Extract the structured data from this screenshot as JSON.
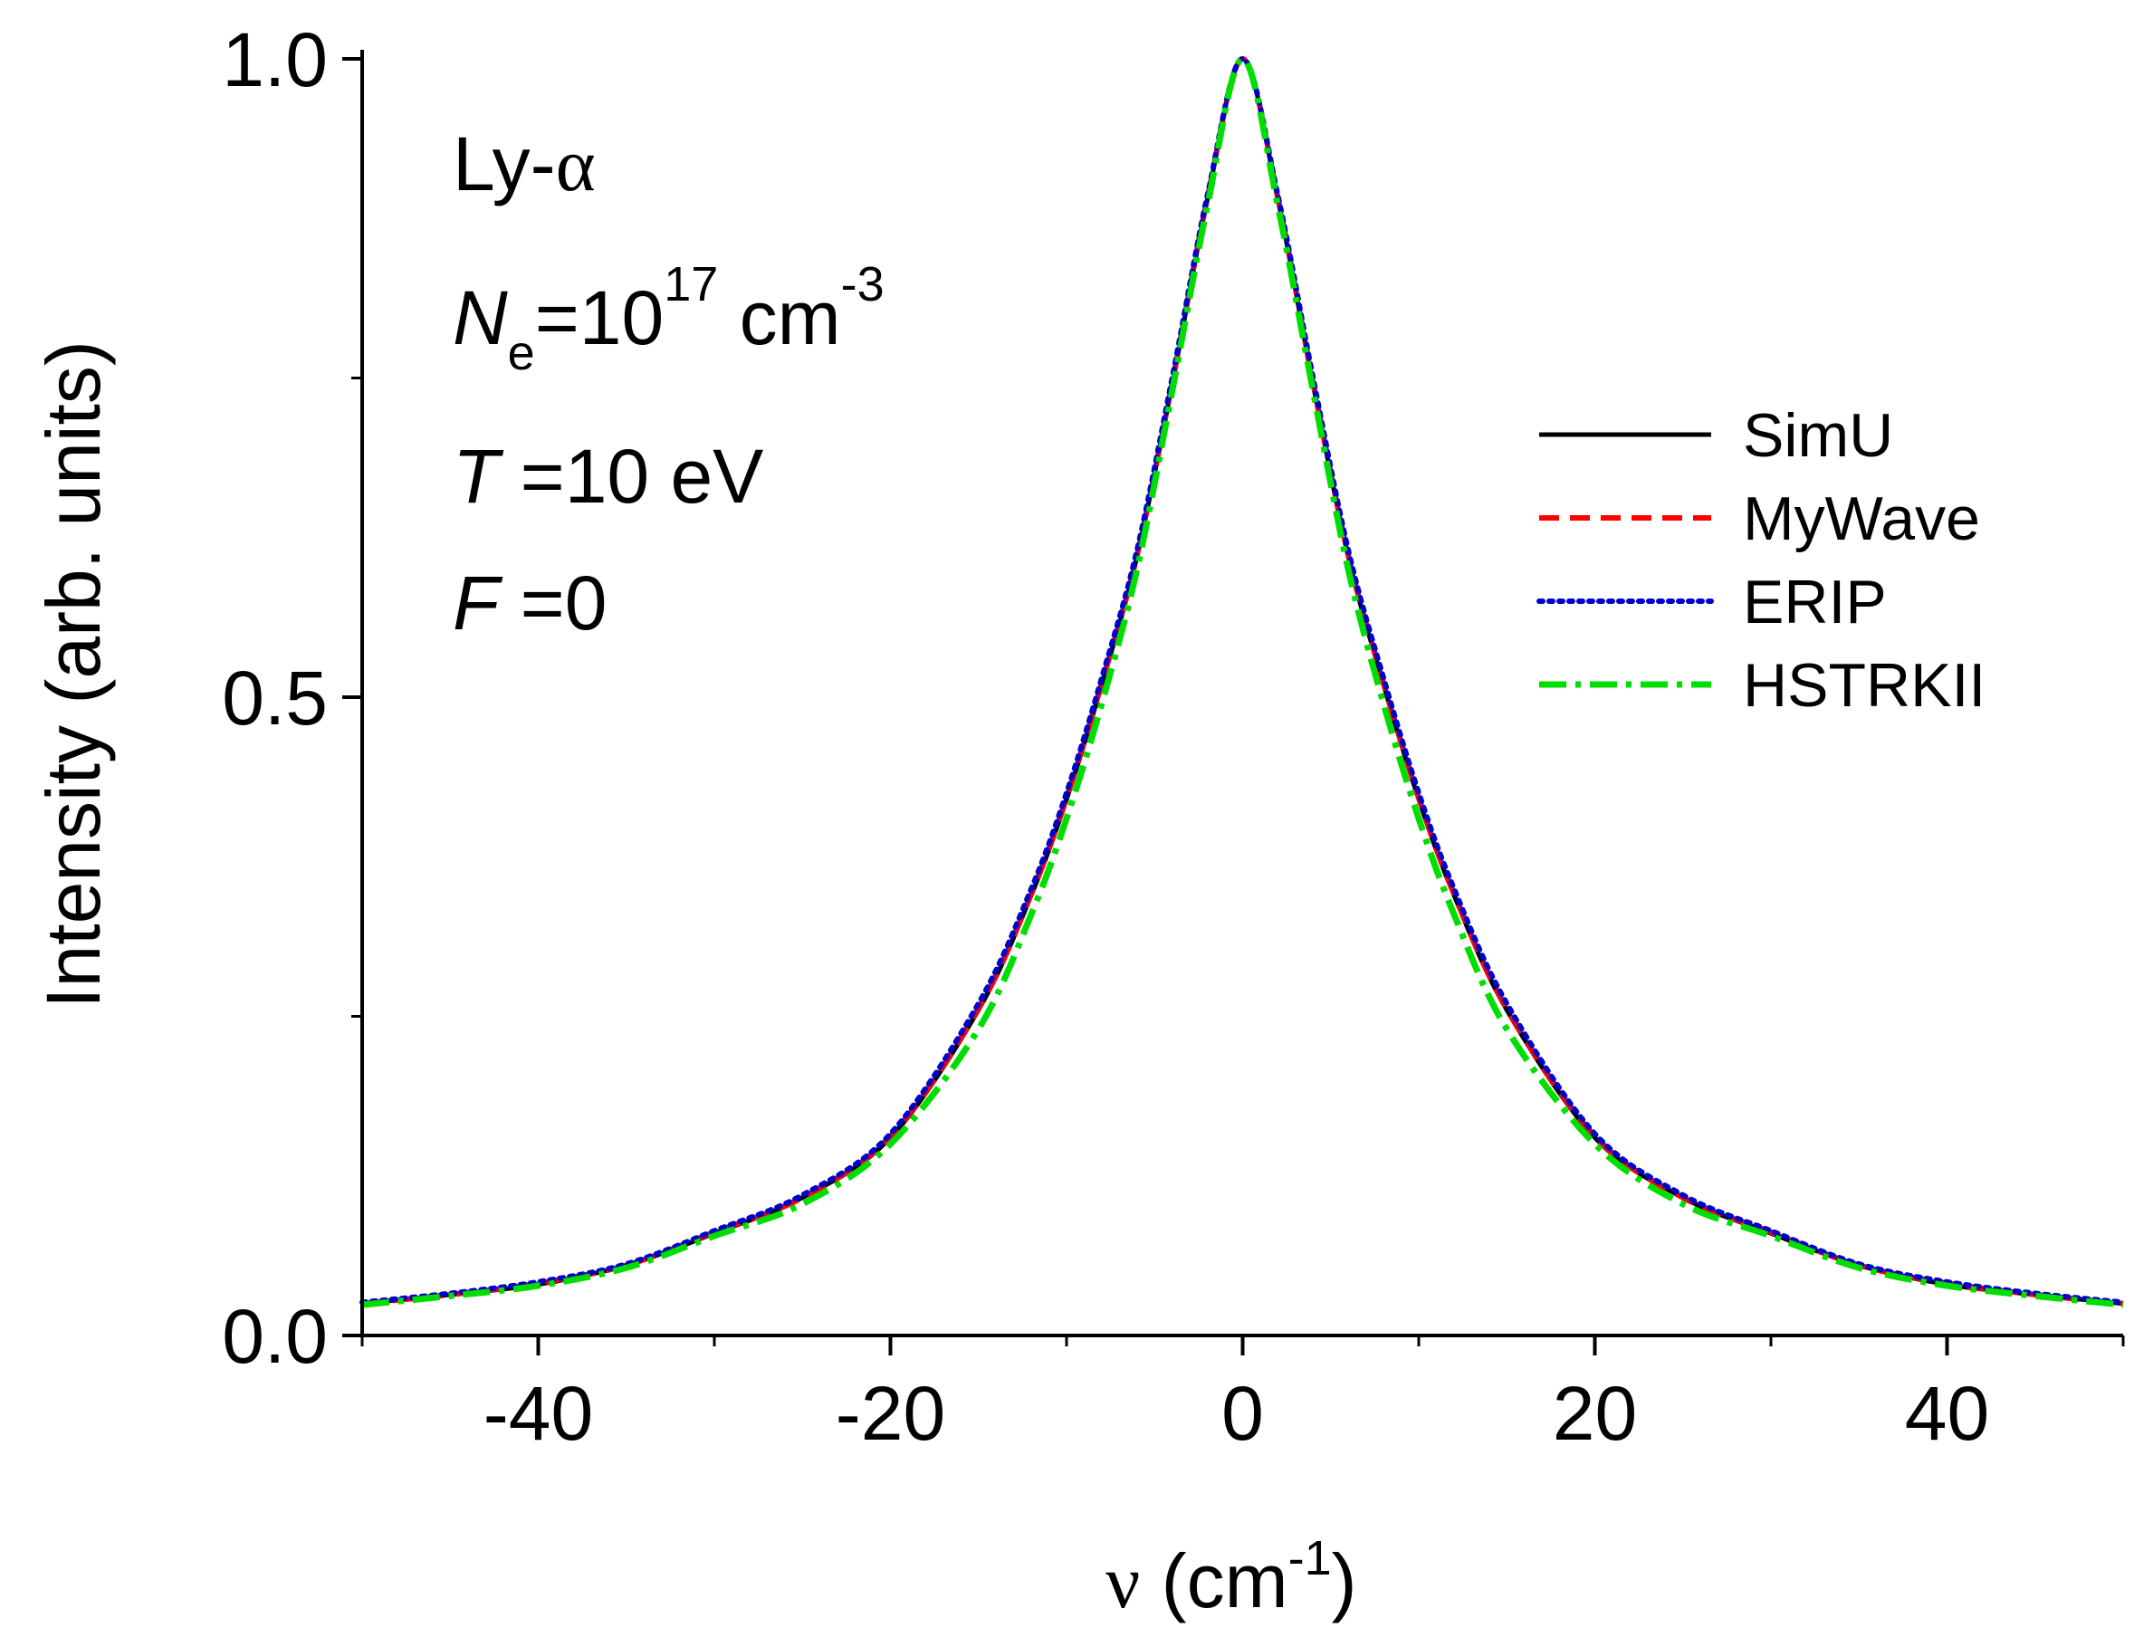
{
  "chart_data": {
    "type": "line",
    "xlabel": "ν (cm-1)",
    "xlabel_parts": {
      "symbol": "ν",
      "open": " (cm",
      "sup": "-1",
      "close": ")"
    },
    "ylabel": "Intensity (arb. units)",
    "xlim": [
      -50,
      50
    ],
    "ylim": [
      0,
      1.0
    ],
    "xticks": [
      -40,
      -20,
      0,
      20,
      40
    ],
    "xtick_labels": [
      "-40",
      "-20",
      "0",
      "20",
      "40"
    ],
    "yticks": [
      0.0,
      0.5,
      1.0
    ],
    "ytick_labels": [
      "0.0",
      "0.5",
      "1.0"
    ],
    "grid": false,
    "legend_position": "right",
    "annotations": {
      "line": {
        "prefix": "Ly-",
        "greek": "α"
      },
      "density": {
        "symbol": "N",
        "sub": "e",
        "eq": "=10",
        "sup": "17",
        "unit": " cm",
        "unit_sup": "-3"
      },
      "temperature": {
        "symbol": "T",
        "eq": " =10 eV"
      },
      "field": {
        "symbol": "F",
        "eq": " =0"
      }
    },
    "x": [
      -50,
      -45,
      -40,
      -35,
      -30,
      -25,
      -20,
      -15,
      -12,
      -10,
      -8,
      -6,
      -4,
      -2,
      0,
      2,
      4,
      6,
      8,
      10,
      12,
      15,
      20,
      25,
      30,
      35,
      40,
      45,
      50
    ],
    "series": [
      {
        "name": "SimU",
        "color": "#000000",
        "style": "solid",
        "values": [
          0.025,
          0.032,
          0.04,
          0.055,
          0.08,
          0.108,
          0.155,
          0.255,
          0.345,
          0.42,
          0.51,
          0.61,
          0.745,
          0.89,
          1.0,
          0.89,
          0.745,
          0.61,
          0.51,
          0.42,
          0.345,
          0.255,
          0.155,
          0.108,
          0.08,
          0.055,
          0.04,
          0.032,
          0.025
        ]
      },
      {
        "name": "MyWave",
        "color": "#ff0000",
        "style": "dashed",
        "values": [
          0.025,
          0.032,
          0.041,
          0.055,
          0.081,
          0.108,
          0.156,
          0.256,
          0.346,
          0.421,
          0.511,
          0.611,
          0.746,
          0.891,
          1.0,
          0.891,
          0.746,
          0.611,
          0.511,
          0.421,
          0.346,
          0.256,
          0.156,
          0.108,
          0.081,
          0.055,
          0.041,
          0.032,
          0.025
        ]
      },
      {
        "name": "ERIP",
        "color": "#0000cc",
        "style": "dotted",
        "values": [
          0.026,
          0.033,
          0.042,
          0.056,
          0.082,
          0.11,
          0.158,
          0.26,
          0.35,
          0.425,
          0.515,
          0.615,
          0.75,
          0.893,
          1.0,
          0.893,
          0.75,
          0.615,
          0.515,
          0.425,
          0.35,
          0.26,
          0.158,
          0.11,
          0.082,
          0.056,
          0.042,
          0.033,
          0.026
        ]
      },
      {
        "name": "HSTRKII",
        "color": "#00dd00",
        "style": "dashdot",
        "values": [
          0.024,
          0.031,
          0.039,
          0.053,
          0.078,
          0.103,
          0.15,
          0.24,
          0.33,
          0.405,
          0.495,
          0.6,
          0.74,
          0.885,
          1.0,
          0.885,
          0.74,
          0.6,
          0.495,
          0.405,
          0.33,
          0.24,
          0.15,
          0.103,
          0.078,
          0.053,
          0.039,
          0.031,
          0.024
        ]
      }
    ]
  }
}
